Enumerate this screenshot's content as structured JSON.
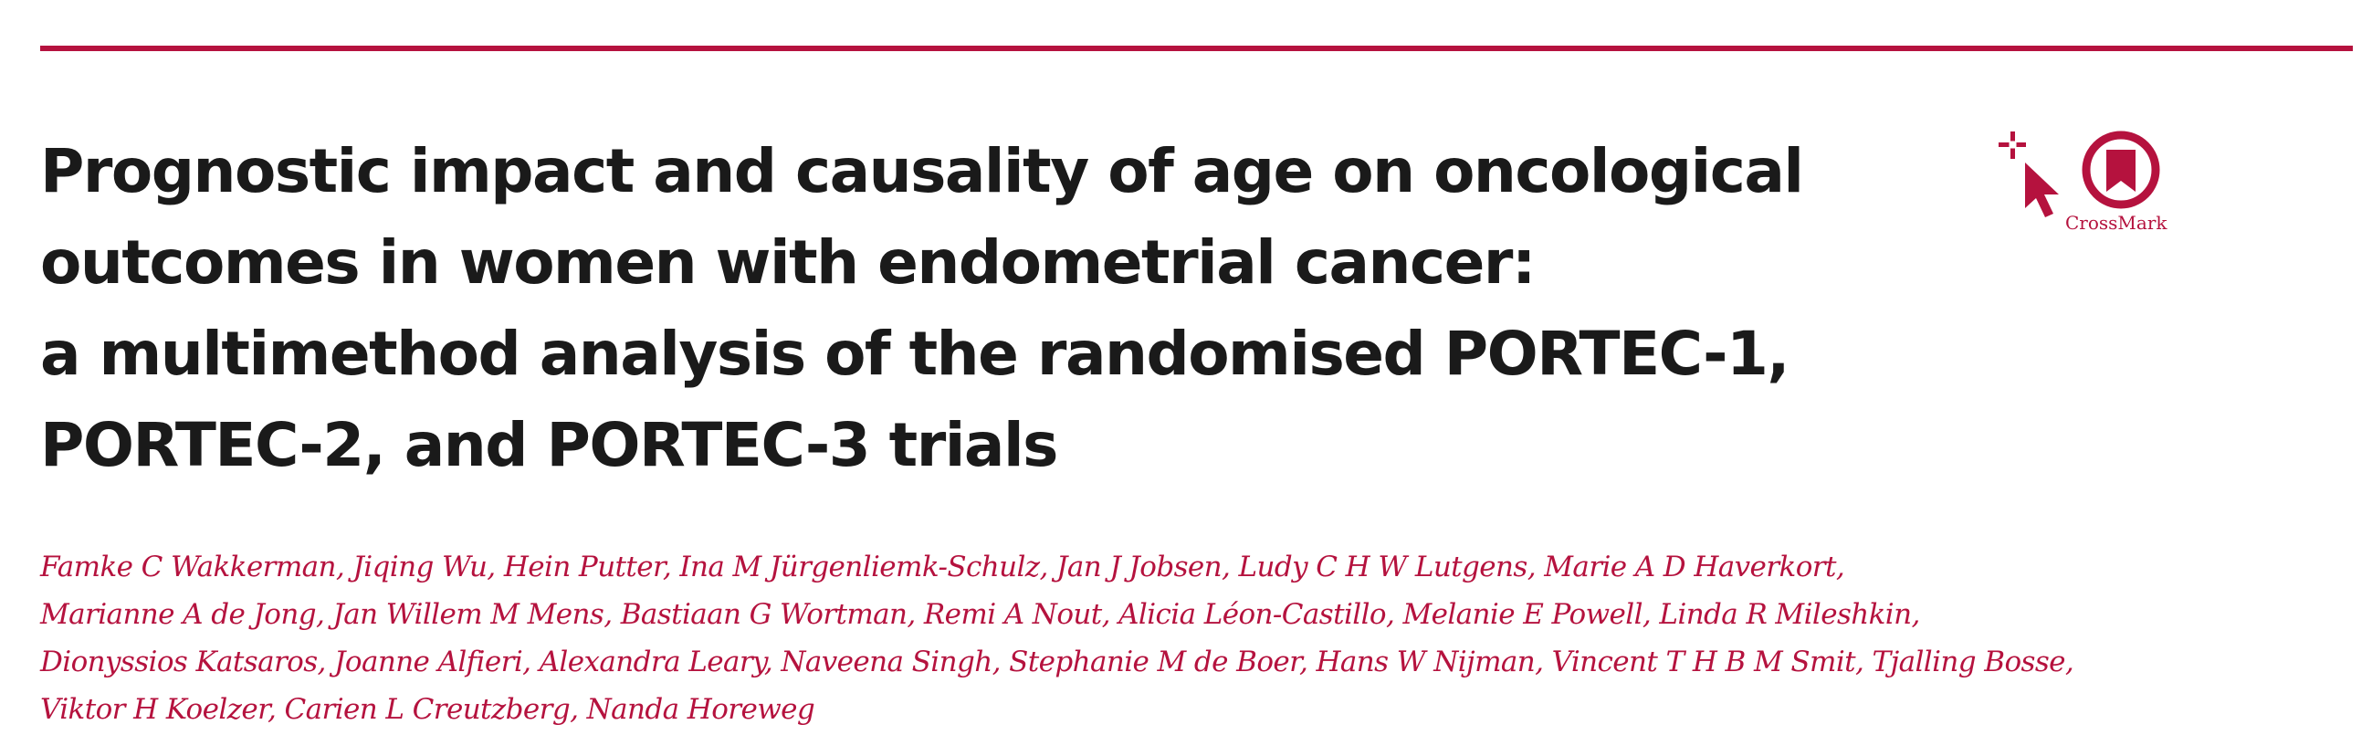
{
  "colors": {
    "accent": "#b5123e",
    "title_text": "#1a1a1a"
  },
  "title_lines": [
    "Prognostic impact and causality of age on oncological",
    "outcomes in women with endometrial cancer:",
    "a multimethod analysis of the randomised PORTEC-1,",
    "PORTEC-2, and PORTEC-3 trials"
  ],
  "author_lines": [
    "Famke C Wakkerman, Jiqing Wu, Hein Putter, Ina M Jürgenliemk-Schulz, Jan J Jobsen, Ludy C H W Lutgens, Marie A D Haverkort,",
    "Marianne A de Jong, Jan Willem M Mens, Bastiaan G Wortman, Remi A Nout, Alicia Léon-Castillo, Melanie E Powell, Linda R Mileshkin,",
    "Dionyssios Katsaros, Joanne Alfieri, Alexandra Leary, Naveena Singh, Stephanie M de Boer, Hans W Nijman, Vincent T H B M Smit, Tjalling Bosse,",
    "Viktor H Koelzer, Carien L Creutzberg, Nanda Horeweg"
  ],
  "crossmark": {
    "label": "CrossMark",
    "icon": "crossmark-icon"
  }
}
